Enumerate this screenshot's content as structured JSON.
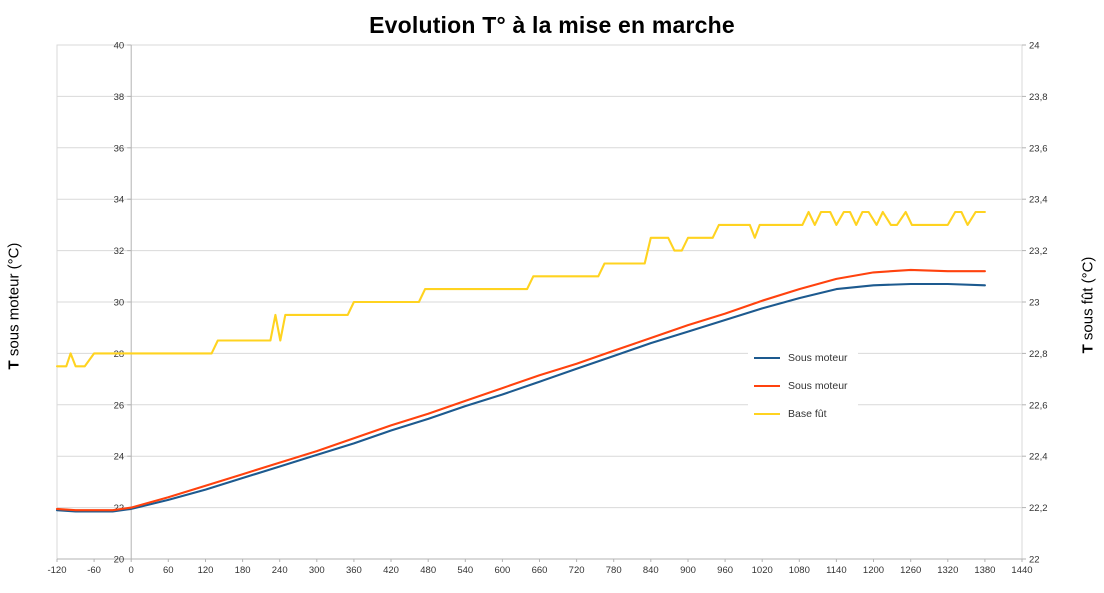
{
  "chart_data": {
    "type": "line",
    "title": "Evolution T° à la mise en marche",
    "xlabel": "",
    "ylabel_left": "T sous moteur (°C)",
    "ylabel_right": "T sous fût (°C)",
    "xlim": [
      -120,
      1440
    ],
    "ylim_left": [
      20,
      40
    ],
    "ylim_right": [
      22,
      24
    ],
    "grid": "horizontal-only",
    "legend_position": "center-right-inside",
    "grid_color": "#d9d9d9",
    "axis_color": "#b3b3b3",
    "tick_label_color": "#333333",
    "x_ticks": {
      "values": [
        -120,
        -60,
        0,
        60,
        120,
        180,
        240,
        300,
        360,
        420,
        480,
        540,
        600,
        660,
        720,
        780,
        840,
        900,
        960,
        1020,
        1080,
        1140,
        1200,
        1260,
        1320,
        1380,
        1440
      ],
      "labels": [
        "-120",
        "-60",
        "0",
        "60",
        "120",
        "180",
        "240",
        "300",
        "360",
        "420",
        "480",
        "540",
        "600",
        "660",
        "720",
        "780",
        "840",
        "900",
        "960",
        "1020",
        "1080",
        "1140",
        "1200",
        "1260",
        "1320",
        "1380",
        "1440"
      ]
    },
    "left_ticks": {
      "values": [
        40,
        38,
        36,
        34,
        32,
        30,
        28,
        26,
        24,
        22,
        20
      ],
      "labels": [
        "40",
        "38",
        "36",
        "34",
        "32",
        "30",
        "28",
        "26",
        "24",
        "22",
        "20"
      ]
    },
    "right_ticks": {
      "values": [
        24,
        23.8,
        23.6,
        23.4,
        23.2,
        23,
        22.8,
        22.6,
        22.4,
        22.2,
        22
      ],
      "labels": [
        "24",
        "23,8",
        "23,6",
        "23,4",
        "23,2",
        "23",
        "22,8",
        "22,6",
        "22,4",
        "22,2",
        "22"
      ]
    },
    "series": [
      {
        "name": "Sous moteur",
        "color": "#1d5a8f",
        "axis": "left",
        "x": [
          -120,
          -90,
          -60,
          -30,
          0,
          60,
          120,
          180,
          240,
          300,
          360,
          420,
          480,
          540,
          600,
          660,
          720,
          780,
          840,
          900,
          960,
          1020,
          1080,
          1140,
          1200,
          1260,
          1320,
          1380
        ],
        "values": [
          21.9,
          21.85,
          21.85,
          21.85,
          21.95,
          22.3,
          22.7,
          23.15,
          23.6,
          24.05,
          24.5,
          25.0,
          25.45,
          25.95,
          26.4,
          26.9,
          27.4,
          27.9,
          28.4,
          28.85,
          29.3,
          29.75,
          30.15,
          30.5,
          30.65,
          30.7,
          30.7,
          30.65
        ]
      },
      {
        "name": "Sous moteur",
        "color": "#ff420e",
        "axis": "left",
        "x": [
          -120,
          -90,
          -60,
          -30,
          0,
          60,
          120,
          180,
          240,
          300,
          360,
          420,
          480,
          540,
          600,
          660,
          720,
          780,
          840,
          900,
          960,
          1020,
          1080,
          1140,
          1200,
          1260,
          1320,
          1380
        ],
        "values": [
          21.95,
          21.9,
          21.9,
          21.9,
          22.0,
          22.4,
          22.85,
          23.3,
          23.75,
          24.2,
          24.7,
          25.2,
          25.65,
          26.15,
          26.65,
          27.15,
          27.6,
          28.1,
          28.6,
          29.1,
          29.55,
          30.05,
          30.5,
          30.9,
          31.15,
          31.25,
          31.2,
          31.2
        ]
      },
      {
        "name": "Base fût",
        "color": "#ffd320",
        "axis": "right",
        "x": [
          -120,
          -105,
          -98,
          -90,
          -75,
          -60,
          130,
          140,
          225,
          233,
          241,
          249,
          257,
          350,
          360,
          465,
          475,
          640,
          650,
          755,
          765,
          830,
          840,
          868,
          878,
          890,
          900,
          940,
          950,
          1000,
          1008,
          1016,
          1085,
          1095,
          1105,
          1115,
          1130,
          1140,
          1152,
          1162,
          1172,
          1182,
          1192,
          1205,
          1215,
          1228,
          1238,
          1252,
          1262,
          1280,
          1300,
          1320,
          1332,
          1342,
          1352,
          1365,
          1380
        ],
        "values": [
          22.75,
          22.75,
          22.8,
          22.75,
          22.75,
          22.8,
          22.8,
          22.85,
          22.85,
          22.95,
          22.85,
          22.95,
          22.95,
          22.95,
          23.0,
          23.0,
          23.05,
          23.05,
          23.1,
          23.1,
          23.15,
          23.15,
          23.25,
          23.25,
          23.2,
          23.2,
          23.25,
          23.25,
          23.3,
          23.3,
          23.25,
          23.3,
          23.3,
          23.35,
          23.3,
          23.35,
          23.35,
          23.3,
          23.35,
          23.35,
          23.3,
          23.35,
          23.35,
          23.3,
          23.35,
          23.3,
          23.3,
          23.35,
          23.3,
          23.3,
          23.3,
          23.3,
          23.35,
          23.35,
          23.3,
          23.35,
          23.35
        ]
      }
    ]
  }
}
